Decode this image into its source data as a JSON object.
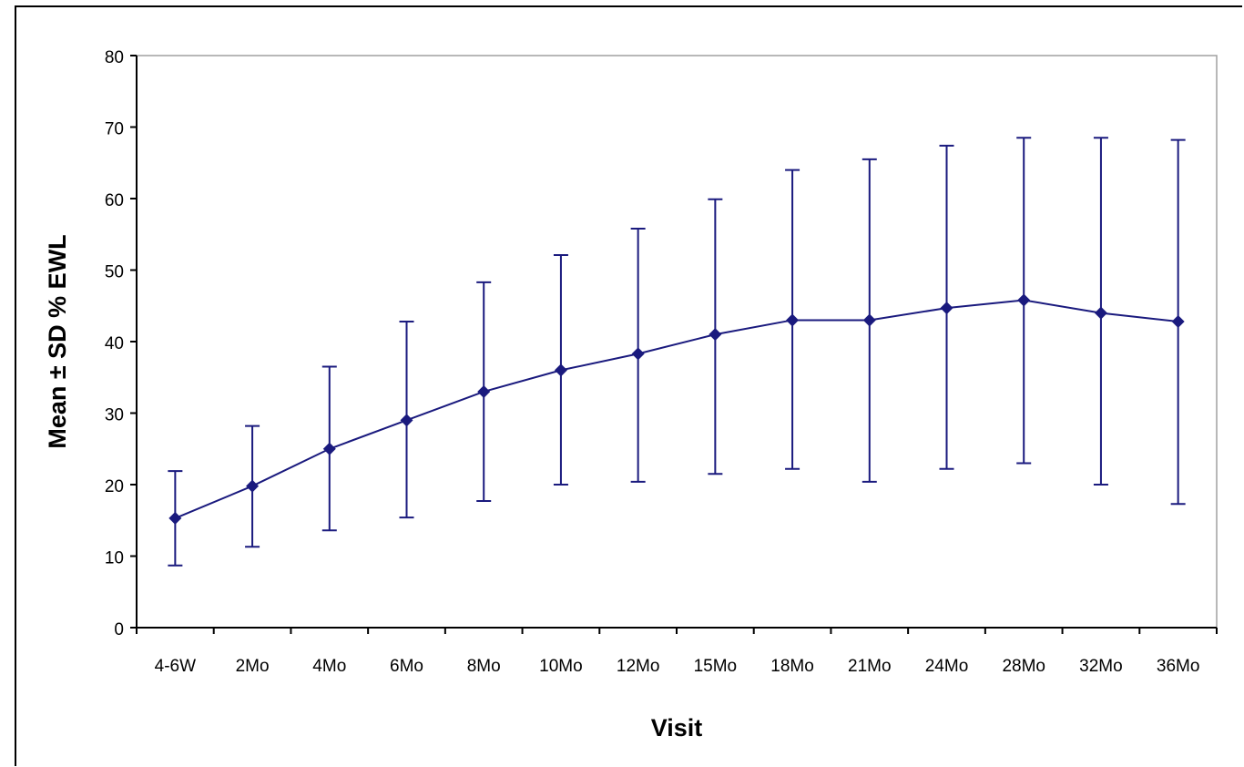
{
  "chart_data": {
    "type": "line",
    "title": "",
    "xlabel": "Visit",
    "ylabel": "Mean ± SD % EWL",
    "ylim": [
      0,
      80
    ],
    "yticks": [
      0,
      10,
      20,
      30,
      40,
      50,
      60,
      70,
      80
    ],
    "grid": false,
    "categories": [
      "4-6W",
      "2Mo",
      "4Mo",
      "6Mo",
      "8Mo",
      "10Mo",
      "12Mo",
      "15Mo",
      "18Mo",
      "21Mo",
      "24Mo",
      "28Mo",
      "32Mo",
      "36Mo"
    ],
    "series": [
      {
        "values": [
          15.3,
          19.8,
          25.0,
          29.0,
          33.0,
          36.0,
          38.3,
          41.0,
          43.0,
          43.0,
          44.7,
          45.8,
          44.0,
          42.8
        ],
        "error_upper": [
          21.9,
          28.2,
          36.5,
          42.8,
          48.3,
          52.1,
          55.8,
          59.9,
          64.0,
          65.5,
          67.4,
          68.5,
          68.5,
          68.2
        ],
        "error_lower": [
          8.7,
          11.3,
          13.6,
          15.4,
          17.7,
          20.0,
          20.4,
          21.5,
          22.2,
          20.4,
          22.2,
          23.0,
          20.0,
          17.3
        ]
      }
    ],
    "colors": {
      "series": "#1a1a7e",
      "axis": "#000000",
      "plot_border": "#a0a0a0"
    }
  }
}
